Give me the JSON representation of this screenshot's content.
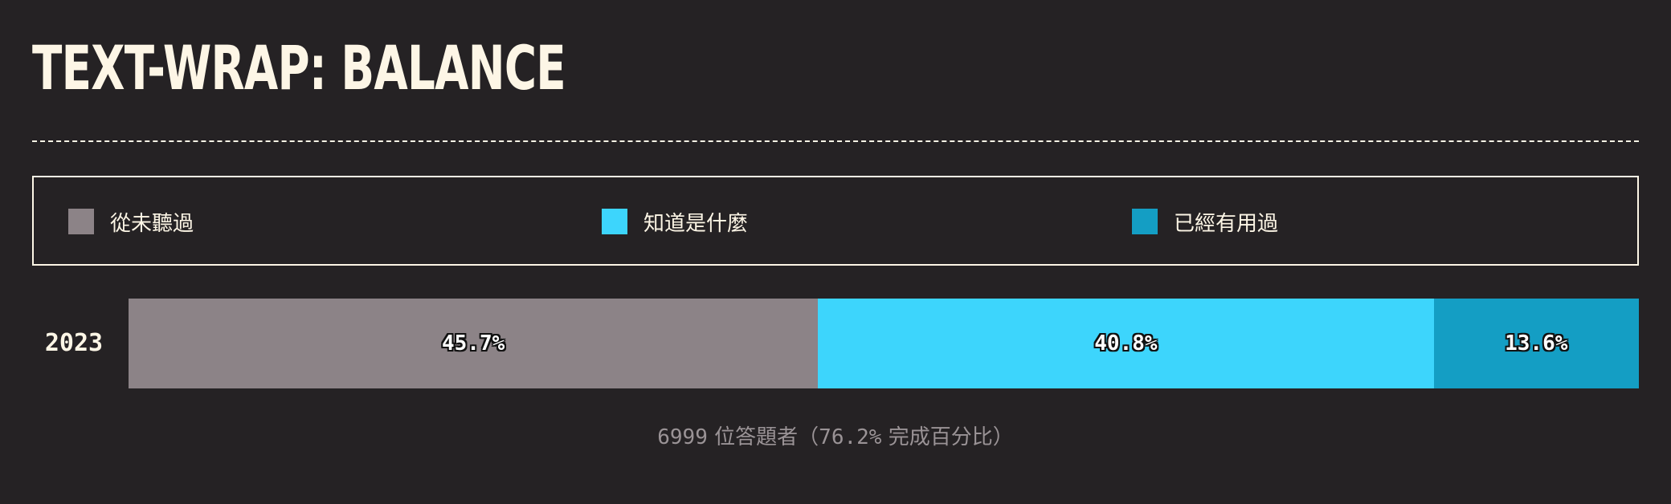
{
  "title": "TEXT-WRAP: BALANCE",
  "chart_data": {
    "type": "bar",
    "orientation": "horizontal",
    "stacked": true,
    "categories": [
      "2023"
    ],
    "series": [
      {
        "name": "從未聽過",
        "values": [
          45.7
        ],
        "label": "45.7%",
        "color": "#8c8387"
      },
      {
        "name": "知道是什麼",
        "values": [
          40.8
        ],
        "label": "40.8%",
        "color": "#3dd5fc"
      },
      {
        "name": "已經有用過",
        "values": [
          13.6
        ],
        "label": "13.6%",
        "color": "#149ec4"
      }
    ],
    "xlim": [
      0,
      100
    ],
    "unit": "%",
    "legend_position": "top",
    "grid": false
  },
  "footnote": {
    "count": "6999",
    "count_label": "位答題者",
    "paren_open": "（",
    "completion": "76.2%",
    "completion_label": "完成百分比",
    "paren_close": "）"
  }
}
